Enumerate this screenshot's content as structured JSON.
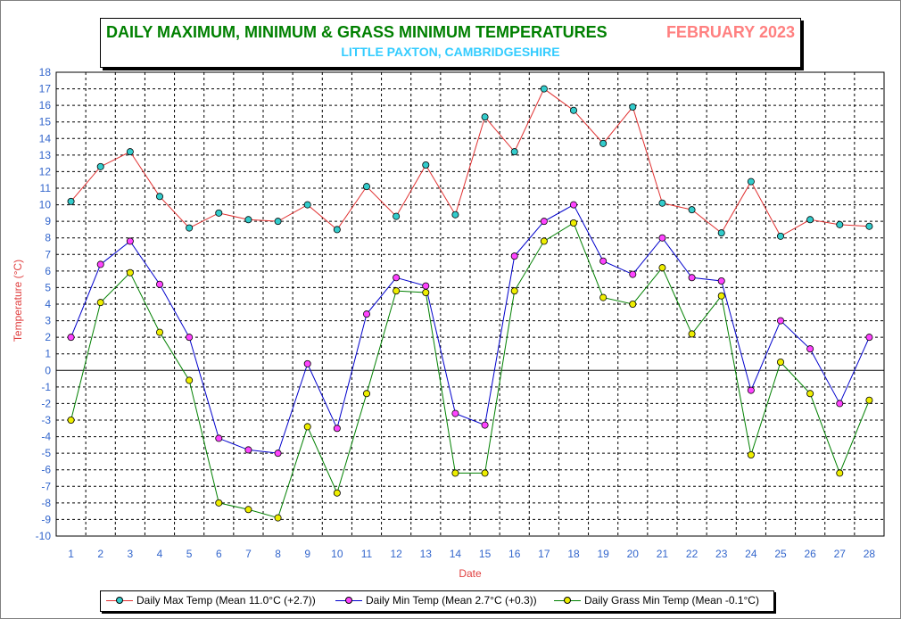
{
  "title": {
    "main": "DAILY MAXIMUM, MINIMUM & GRASS MINIMUM TEMPERATURES",
    "month": "FEBRUARY 2023",
    "location": "LITTLE PAXTON, CAMBRIDGESHIRE"
  },
  "colors": {
    "title": "#008000",
    "month": "#ff8080",
    "location": "#33ccff",
    "tick_labels": "#3366cc",
    "axis_titles": "#e04040"
  },
  "chart_data": {
    "type": "line",
    "xlabel": "Date",
    "ylabel": "Temperature (°C)",
    "x": [
      1,
      2,
      3,
      4,
      5,
      6,
      7,
      8,
      9,
      10,
      11,
      12,
      13,
      14,
      15,
      16,
      17,
      18,
      19,
      20,
      21,
      22,
      23,
      24,
      25,
      26,
      27,
      28
    ],
    "ylim": [
      -10,
      18
    ],
    "yticks": [
      18,
      17,
      16,
      15,
      14,
      13,
      12,
      11,
      10,
      9,
      8,
      7,
      6,
      5,
      4,
      3,
      2,
      1,
      0,
      -1,
      -2,
      -3,
      -4,
      -5,
      -6,
      -7,
      -8,
      -9,
      -10
    ],
    "grid": true,
    "legend_position": "bottom",
    "series": [
      {
        "name": "Daily Max Temp (Mean 11.0°C (+2.7))",
        "line_color": "#e03030",
        "marker_color": "#33cccc",
        "values": [
          10.2,
          12.3,
          13.2,
          10.5,
          8.6,
          9.5,
          9.1,
          9.0,
          10.0,
          8.5,
          11.1,
          9.3,
          12.4,
          9.4,
          15.3,
          13.2,
          17.0,
          15.7,
          13.7,
          15.9,
          10.1,
          9.7,
          8.3,
          11.4,
          8.1,
          9.1,
          8.8,
          8.7
        ]
      },
      {
        "name": "Daily Min Temp (Mean 2.7°C (+0.3))",
        "line_color": "#0000cc",
        "marker_color": "#ff44ff",
        "values": [
          2.0,
          6.4,
          7.8,
          5.2,
          2.0,
          -4.1,
          -4.8,
          -5.0,
          0.4,
          -3.5,
          3.4,
          5.6,
          5.1,
          -2.6,
          -3.3,
          6.9,
          9.0,
          10.0,
          6.6,
          5.8,
          8.0,
          5.6,
          5.4,
          -1.2,
          3.0,
          1.3,
          -2.0,
          2.0
        ]
      },
      {
        "name": "Daily Grass Min Temp (Mean -0.1°C)",
        "line_color": "#008000",
        "marker_color": "#eeee00",
        "values": [
          -3.0,
          4.1,
          5.9,
          2.3,
          -0.6,
          -8.0,
          -8.4,
          -8.9,
          -3.4,
          -7.4,
          -1.4,
          4.8,
          4.7,
          -6.2,
          -6.2,
          4.8,
          7.8,
          8.9,
          4.4,
          4.0,
          6.2,
          2.2,
          4.5,
          -5.1,
          0.5,
          -1.4,
          -6.2,
          -1.8
        ]
      }
    ]
  }
}
